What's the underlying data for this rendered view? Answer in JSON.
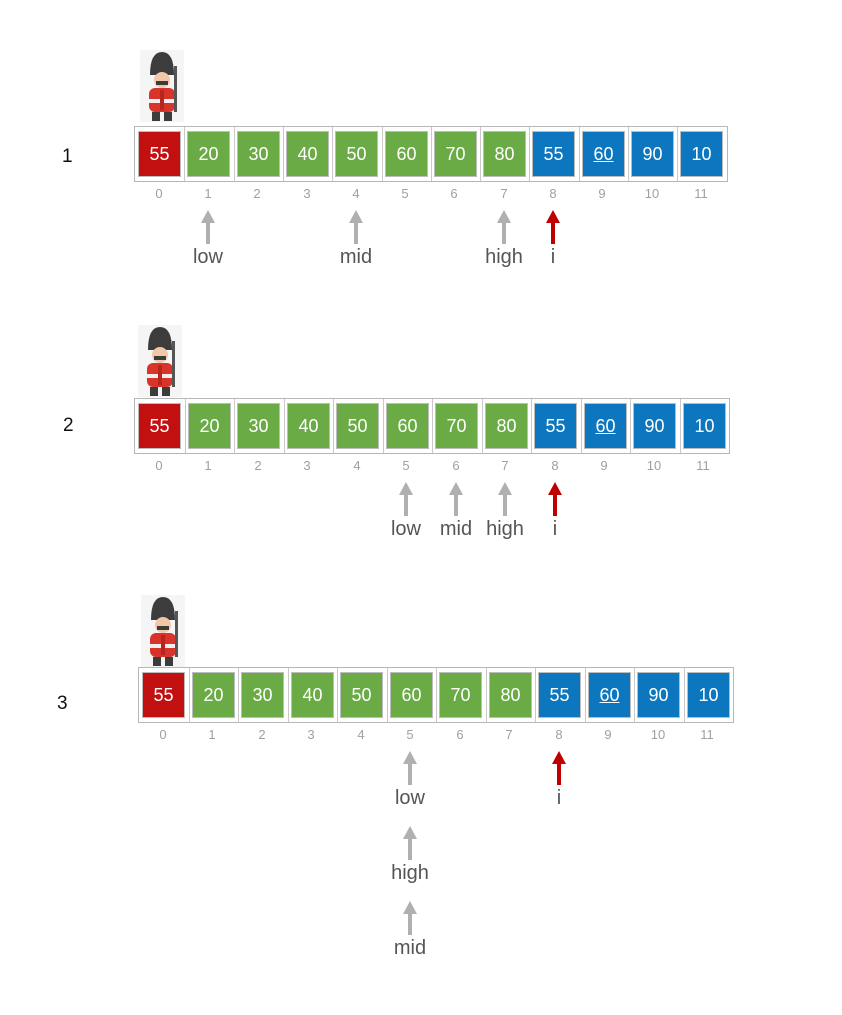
{
  "colors": {
    "red": "#c20f10",
    "green": "#6aab45",
    "blue": "#0c76be",
    "gray_arrow": "#b0b0b0",
    "red_arrow": "#c00000"
  },
  "steps": [
    {
      "number": "1",
      "cells": [
        {
          "value": "55",
          "color": "red",
          "index": "0"
        },
        {
          "value": "20",
          "color": "green",
          "index": "1"
        },
        {
          "value": "30",
          "color": "green",
          "index": "2"
        },
        {
          "value": "40",
          "color": "green",
          "index": "3"
        },
        {
          "value": "50",
          "color": "green",
          "index": "4"
        },
        {
          "value": "60",
          "color": "green",
          "index": "5"
        },
        {
          "value": "70",
          "color": "green",
          "index": "6"
        },
        {
          "value": "80",
          "color": "green",
          "index": "7"
        },
        {
          "value": "55",
          "color": "blue",
          "index": "8"
        },
        {
          "value": "60",
          "color": "blue",
          "index": "9",
          "underline": true
        },
        {
          "value": "90",
          "color": "blue",
          "index": "10"
        },
        {
          "value": "10",
          "color": "blue",
          "index": "11"
        }
      ],
      "pointers": [
        {
          "label": "low",
          "at": 1,
          "color": "gray"
        },
        {
          "label": "mid",
          "at": 4,
          "color": "gray"
        },
        {
          "label": "high",
          "at": 7,
          "color": "gray"
        },
        {
          "label": "i",
          "at": 8,
          "color": "red"
        }
      ]
    },
    {
      "number": "2",
      "cells": [
        {
          "value": "55",
          "color": "red",
          "index": "0"
        },
        {
          "value": "20",
          "color": "green",
          "index": "1"
        },
        {
          "value": "30",
          "color": "green",
          "index": "2"
        },
        {
          "value": "40",
          "color": "green",
          "index": "3"
        },
        {
          "value": "50",
          "color": "green",
          "index": "4"
        },
        {
          "value": "60",
          "color": "green",
          "index": "5"
        },
        {
          "value": "70",
          "color": "green",
          "index": "6"
        },
        {
          "value": "80",
          "color": "green",
          "index": "7"
        },
        {
          "value": "55",
          "color": "blue",
          "index": "8"
        },
        {
          "value": "60",
          "color": "blue",
          "index": "9",
          "underline": true
        },
        {
          "value": "90",
          "color": "blue",
          "index": "10"
        },
        {
          "value": "10",
          "color": "blue",
          "index": "11"
        }
      ],
      "pointers": [
        {
          "label": "low",
          "at": 5,
          "color": "gray"
        },
        {
          "label": "mid",
          "at": 6,
          "color": "gray"
        },
        {
          "label": "high",
          "at": 7,
          "color": "gray"
        },
        {
          "label": "i",
          "at": 8,
          "color": "red"
        }
      ]
    },
    {
      "number": "3",
      "cells": [
        {
          "value": "55",
          "color": "red",
          "index": "0"
        },
        {
          "value": "20",
          "color": "green",
          "index": "1"
        },
        {
          "value": "30",
          "color": "green",
          "index": "2"
        },
        {
          "value": "40",
          "color": "green",
          "index": "3"
        },
        {
          "value": "50",
          "color": "green",
          "index": "4"
        },
        {
          "value": "60",
          "color": "green",
          "index": "5"
        },
        {
          "value": "70",
          "color": "green",
          "index": "6"
        },
        {
          "value": "80",
          "color": "green",
          "index": "7"
        },
        {
          "value": "55",
          "color": "blue",
          "index": "8"
        },
        {
          "value": "60",
          "color": "blue",
          "index": "9",
          "underline": true
        },
        {
          "value": "90",
          "color": "blue",
          "index": "10"
        },
        {
          "value": "10",
          "color": "blue",
          "index": "11"
        }
      ],
      "pointers": [
        {
          "label": "low",
          "at": 5,
          "color": "gray"
        },
        {
          "label": "high",
          "at": 5,
          "color": "gray"
        },
        {
          "label": "mid",
          "at": 5,
          "color": "gray"
        },
        {
          "label": "i",
          "at": 8,
          "color": "red"
        }
      ]
    }
  ]
}
